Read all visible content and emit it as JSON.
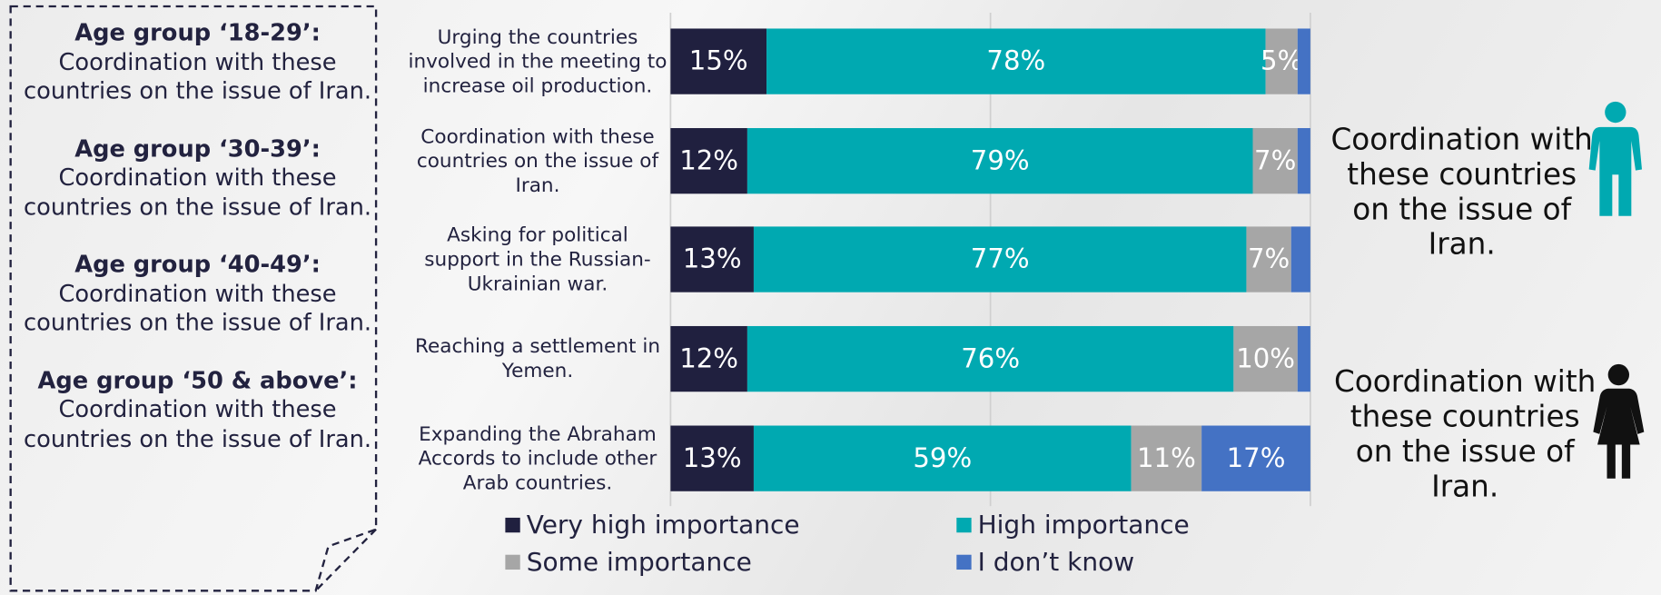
{
  "chart_data": {
    "type": "stacked-bar-horizontal",
    "categories": [
      "Urging the countries involved in the meeting to increase oil production.",
      "Coordination with these countries on the issue of Iran.",
      "Asking for political support in the Russian-Ukrainian war.",
      "Reaching a settlement in Yemen.",
      "Expanding the Abraham Accords to include other Arab countries."
    ],
    "series": [
      {
        "name": "Very high importance",
        "color": "#20203f",
        "values": [
          15,
          12,
          13,
          12,
          13
        ],
        "value_labels": [
          "15%",
          "12%",
          "13%",
          "12%",
          "13%"
        ]
      },
      {
        "name": "High importance",
        "color": "#00a9b1",
        "values": [
          78,
          79,
          77,
          76,
          59
        ],
        "value_labels": [
          "78%",
          "79%",
          "77%",
          "76%",
          "59%"
        ]
      },
      {
        "name": "Some importance",
        "color": "#a6a6a6",
        "values": [
          5,
          7,
          7,
          10,
          11
        ],
        "value_labels": [
          "5%",
          "7%",
          "7%",
          "10%",
          "11%"
        ]
      },
      {
        "name": "I don’t know",
        "color": "#4472c4",
        "values": [
          2,
          2,
          3,
          2,
          17
        ],
        "value_labels": [
          null,
          null,
          null,
          null,
          "17%"
        ]
      }
    ],
    "xlim": [
      0,
      100
    ],
    "xticks": [
      0,
      50,
      100
    ],
    "grid": true
  },
  "left_panel": {
    "items": [
      {
        "group": "Age group ‘18-29’:",
        "text": "Coordination with these countries on the issue of Iran."
      },
      {
        "group": "Age group ‘30-39’:",
        "text": "Coordination with these countries on the issue of Iran."
      },
      {
        "group": "Age group ‘40-49’:",
        "text": "Coordination with these countries on the issue of Iran."
      },
      {
        "group": "Age group ‘50 & above’:",
        "text": "Coordination with these countries on the issue of Iran."
      }
    ]
  },
  "gender_panel": {
    "male": "Coordination with these countries on the issue of Iran.",
    "female": "Coordination with these countries on the issue of Iran."
  }
}
